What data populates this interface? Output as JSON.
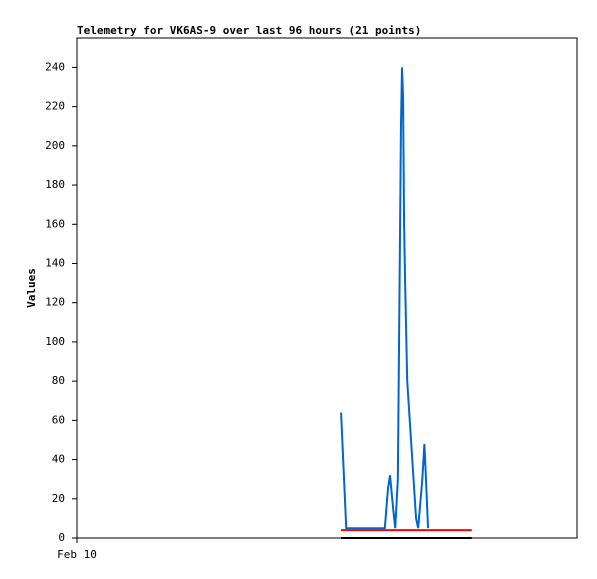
{
  "chart_data": {
    "type": "line",
    "title": "Telemetry for VK6AS-9 over last 96 hours (21 points)",
    "y_label": "Values",
    "xlim": [
      0,
      96
    ],
    "xticks": [
      {
        "value": 0,
        "label": "Feb 10"
      }
    ],
    "ylim": [
      0,
      255
    ],
    "yticks": [
      0,
      20,
      40,
      60,
      80,
      100,
      120,
      140,
      160,
      180,
      200,
      220,
      240
    ],
    "series": [
      {
        "color": "#0066cc",
        "x": [
          50.7,
          51.7,
          59.1,
          59.7,
          60.1,
          60.7,
          61.1,
          61.6,
          62.0,
          62.2,
          62.4,
          62.6,
          62.8,
          63.0,
          63.4,
          65.1,
          65.5,
          66.3,
          66.7,
          67.0,
          67.4
        ],
        "values": [
          64,
          5,
          5,
          25,
          32,
          15,
          5,
          30,
          150,
          210,
          240,
          225,
          160,
          130,
          80,
          10,
          5,
          30,
          48,
          30,
          5
        ]
      },
      {
        "color": "#ff0000",
        "x": [
          50.7,
          75.8
        ],
        "values": [
          4,
          4
        ]
      },
      {
        "color": "#000000",
        "x": [
          50.7,
          75.8
        ],
        "values": [
          0,
          0
        ]
      }
    ]
  }
}
